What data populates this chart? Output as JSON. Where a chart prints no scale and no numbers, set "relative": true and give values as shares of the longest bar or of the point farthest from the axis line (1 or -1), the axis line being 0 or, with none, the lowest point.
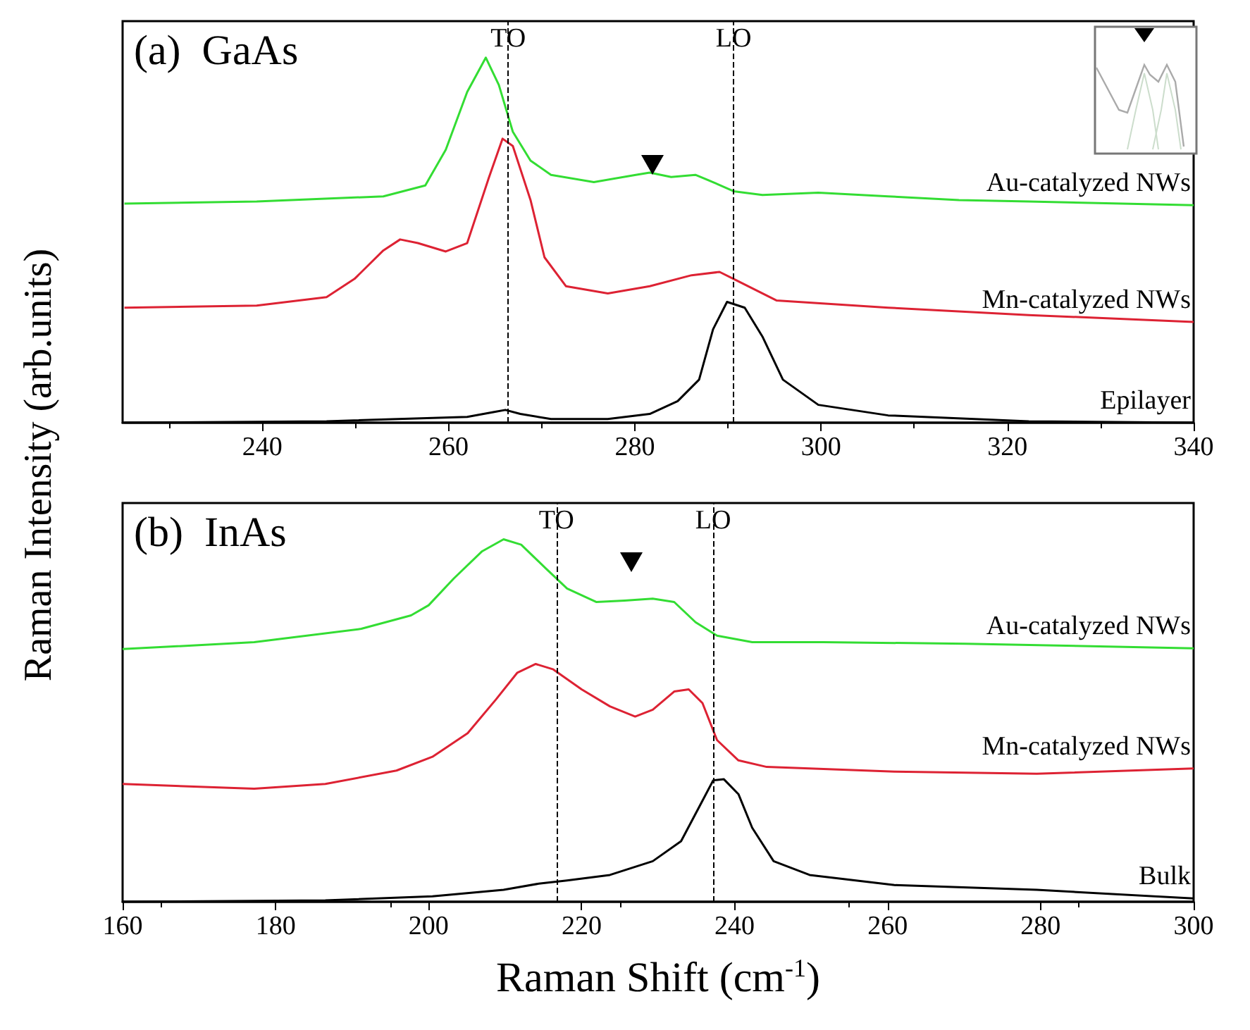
{
  "chart_data": [
    {
      "type": "line",
      "relative": true,
      "ylabel": "Raman Intensity (arb.units)",
      "xlim": [
        225,
        340
      ],
      "xticks": [
        240,
        260,
        280,
        300,
        320,
        340
      ],
      "tick_labels": "x",
      "legend": false,
      "grid": false,
      "marker": "none",
      "line_style": "solid",
      "annotations": [
        "(a)  GaAs"
      ],
      "ref_lines": [
        {
          "axis": "x",
          "value": 266.4,
          "label": "TO",
          "color": "#000000",
          "line_style": "dashed"
        },
        {
          "axis": "x",
          "value": 290.6,
          "label": "LO",
          "color": "#000000",
          "line_style": "dashed"
        }
      ],
      "series": [
        {
          "name": "Au-catalyzed NWs",
          "color": "#33dd33",
          "x": [
            225.2,
            239.4,
            253.0,
            257.5,
            259.7,
            262.0,
            264.0,
            265.4,
            266.9,
            268.8,
            271.0,
            275.6,
            280.1,
            281.6,
            283.9,
            286.5,
            288.4,
            290.6,
            293.7,
            299.7,
            307.2,
            314.8,
            322.3,
            340
          ],
          "values": [
            0.6,
            0.606,
            0.62,
            0.65,
            0.748,
            0.906,
            1.0,
            0.925,
            0.797,
            0.718,
            0.679,
            0.659,
            0.679,
            0.685,
            0.673,
            0.679,
            0.659,
            0.634,
            0.624,
            0.63,
            0.62,
            0.61,
            0.606,
            0.596
          ]
        },
        {
          "name": "Mn-catalyzed NWs",
          "color": "#dd2233",
          "x": [
            225.2,
            239.4,
            246.9,
            249.9,
            253.0,
            254.8,
            256.7,
            259.7,
            262.0,
            264.3,
            265.8,
            266.9,
            268.8,
            270.3,
            272.6,
            277.1,
            281.6,
            286.1,
            289.1,
            290.6,
            295.2,
            307.2,
            322.3,
            340
          ],
          "values": [
            0.315,
            0.321,
            0.344,
            0.394,
            0.472,
            0.502,
            0.492,
            0.469,
            0.492,
            0.669,
            0.778,
            0.758,
            0.61,
            0.453,
            0.374,
            0.354,
            0.374,
            0.404,
            0.413,
            0.394,
            0.335,
            0.315,
            0.295,
            0.276
          ]
        },
        {
          "name": "Epilayer",
          "color": "#000000",
          "x": [
            225.2,
            246.9,
            262.0,
            265.0,
            266.1,
            267.7,
            271.0,
            277.1,
            281.6,
            284.6,
            286.9,
            288.4,
            289.9,
            291.8,
            293.7,
            295.9,
            299.7,
            307.2,
            322.3,
            340
          ],
          "values": [
            0,
            0.004,
            0.016,
            0.03,
            0.035,
            0.024,
            0.01,
            0.01,
            0.024,
            0.059,
            0.118,
            0.256,
            0.331,
            0.315,
            0.236,
            0.118,
            0.049,
            0.02,
            0.004,
            0
          ]
        }
      ]
    },
    {
      "type": "line",
      "relative": true,
      "xlabel": "Raman Shift (cm$^{-1}$)",
      "xlim": [
        160,
        300
      ],
      "xticks": [
        160,
        180,
        200,
        220,
        240,
        260,
        280,
        300
      ],
      "tick_labels": "x",
      "legend": false,
      "grid": false,
      "marker": "none",
      "line_style": "solid",
      "annotations": [
        "(b)  InAs"
      ],
      "ref_lines": [
        {
          "axis": "x",
          "value": 216.7,
          "label": "TO",
          "color": "#000000",
          "line_style": "dashed"
        },
        {
          "axis": "x",
          "value": 237.2,
          "label": "LO",
          "color": "#000000",
          "line_style": "dashed"
        }
      ],
      "series": [
        {
          "name": "Au-catalyzed NWs",
          "color": "#33dd33",
          "x": [
            160,
            177.2,
            191.2,
            197.7,
            200,
            203.3,
            207,
            209.8,
            212.1,
            215.3,
            218.1,
            221.9,
            225.6,
            229.3,
            232.1,
            234.9,
            237.7,
            242.3,
            251.6,
            270.2,
            300
          ],
          "values": [
            0.697,
            0.716,
            0.753,
            0.79,
            0.818,
            0.892,
            0.967,
            1,
            0.985,
            0.92,
            0.864,
            0.827,
            0.831,
            0.836,
            0.827,
            0.771,
            0.734,
            0.716,
            0.716,
            0.712,
            0.699
          ]
        },
        {
          "name": "Mn-catalyzed NWs",
          "color": "#dd2233",
          "x": [
            160,
            177.2,
            186.5,
            195.8,
            200.5,
            205.1,
            208.8,
            211.6,
            214,
            216.3,
            220,
            223.7,
            227,
            229.3,
            232.1,
            234,
            235.8,
            237.7,
            240.5,
            244.2,
            260.9,
            279.5,
            300
          ],
          "values": [
            0.325,
            0.312,
            0.325,
            0.362,
            0.4,
            0.465,
            0.558,
            0.632,
            0.656,
            0.641,
            0.586,
            0.539,
            0.511,
            0.53,
            0.58,
            0.586,
            0.548,
            0.446,
            0.39,
            0.372,
            0.359,
            0.353,
            0.368
          ]
        },
        {
          "name": "Bulk",
          "color": "#000000",
          "x": [
            160,
            186.5,
            200.5,
            209.8,
            214.4,
            218.1,
            223.7,
            229.3,
            233,
            235.8,
            237.2,
            238.6,
            240.5,
            242.3,
            245.1,
            249.8,
            260.9,
            279.5,
            300
          ],
          "values": [
            0,
            0.004,
            0.015,
            0.033,
            0.05,
            0.059,
            0.074,
            0.112,
            0.167,
            0.279,
            0.335,
            0.338,
            0.297,
            0.204,
            0.112,
            0.074,
            0.046,
            0.033,
            0.009
          ]
        }
      ]
    }
  ]
}
